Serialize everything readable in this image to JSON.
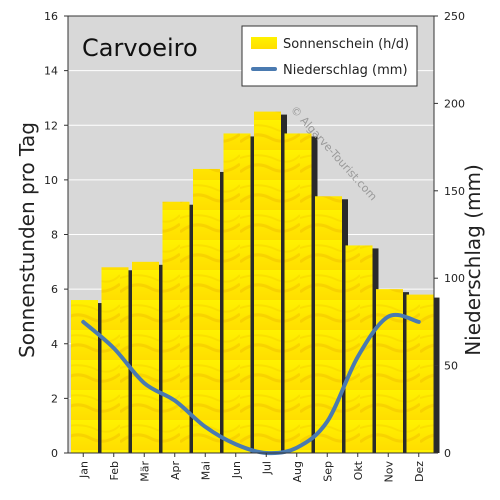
{
  "chart_data": {
    "type": "bar",
    "title": "Carvoeiro",
    "watermark": "© Algarve-Tourist.com",
    "categories": [
      "Jan",
      "Feb",
      "Mär",
      "Apr",
      "Mai",
      "Jun",
      "Jul",
      "Aug",
      "Sep",
      "Okt",
      "Nov",
      "Dez"
    ],
    "series": [
      {
        "name": "Sonnenschein (h/d)",
        "type": "bar",
        "axis": "left",
        "color": "#ffee00",
        "values": [
          5.6,
          6.8,
          7.0,
          9.2,
          10.4,
          11.7,
          12.5,
          11.7,
          9.4,
          7.6,
          6.0,
          5.8
        ]
      },
      {
        "name": "Niederschlag (mm)",
        "type": "line",
        "axis": "right",
        "color": "#4a7ab0",
        "values": [
          75,
          60,
          40,
          30,
          15,
          5,
          0,
          3,
          18,
          55,
          78,
          75
        ]
      }
    ],
    "ylabel": "Sonnenstunden pro Tag",
    "ylabel_right": "Niederschlag (mm)",
    "ylim": [
      0,
      16
    ],
    "y_ticks": [
      0,
      2,
      4,
      6,
      8,
      10,
      12,
      14,
      16
    ],
    "ylim_right": [
      0,
      250
    ],
    "y_ticks_right": [
      0,
      50,
      100,
      150,
      200,
      250
    ],
    "grid": true,
    "legend": "top-right"
  }
}
